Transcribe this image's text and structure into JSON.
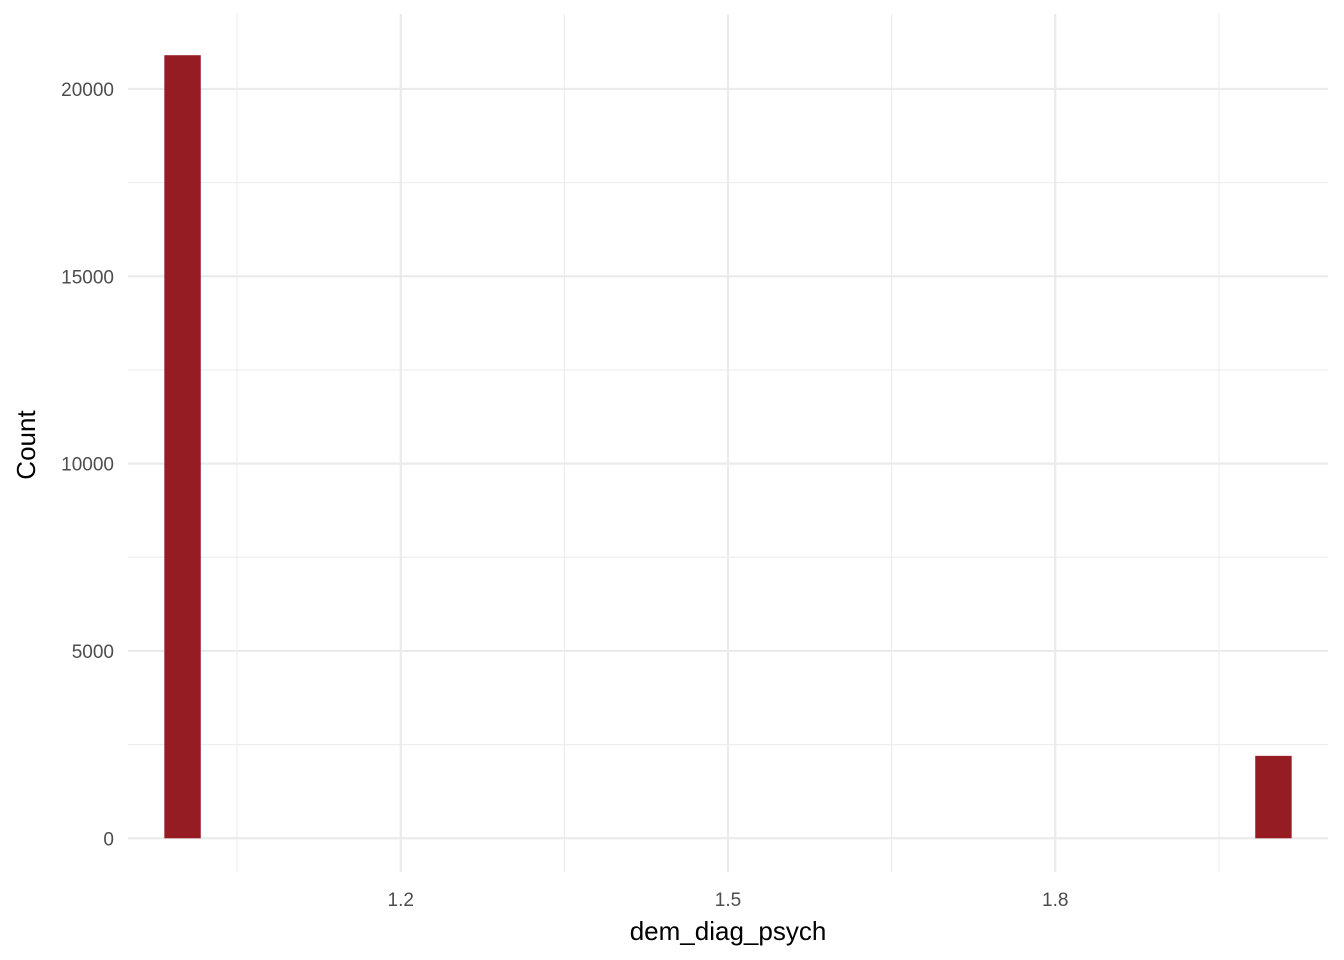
{
  "chart_data": {
    "type": "bar",
    "subtype": "histogram",
    "title": "",
    "xlabel": "dem_diag_psych",
    "ylabel": "Count",
    "xlim": [
      0.95,
      2.05
    ],
    "ylim": [
      -900,
      22000
    ],
    "x_ticks": [
      1.2,
      1.5,
      1.8
    ],
    "x_tick_labels": [
      "1.2",
      "1.5",
      "1.8"
    ],
    "y_ticks": [
      0,
      5000,
      10000,
      15000,
      20000
    ],
    "y_tick_labels": [
      "0",
      "5000",
      "10000",
      "15000",
      "20000"
    ],
    "bars": [
      {
        "x_start": 0.9833,
        "x_end": 1.0167,
        "value": 20900
      },
      {
        "x_start": 1.9833,
        "x_end": 2.0167,
        "value": 2200
      }
    ],
    "bar_color": "#961C24",
    "background": "#ffffff",
    "grid": true,
    "grid_color": "#ebebeb",
    "legend": "none"
  }
}
